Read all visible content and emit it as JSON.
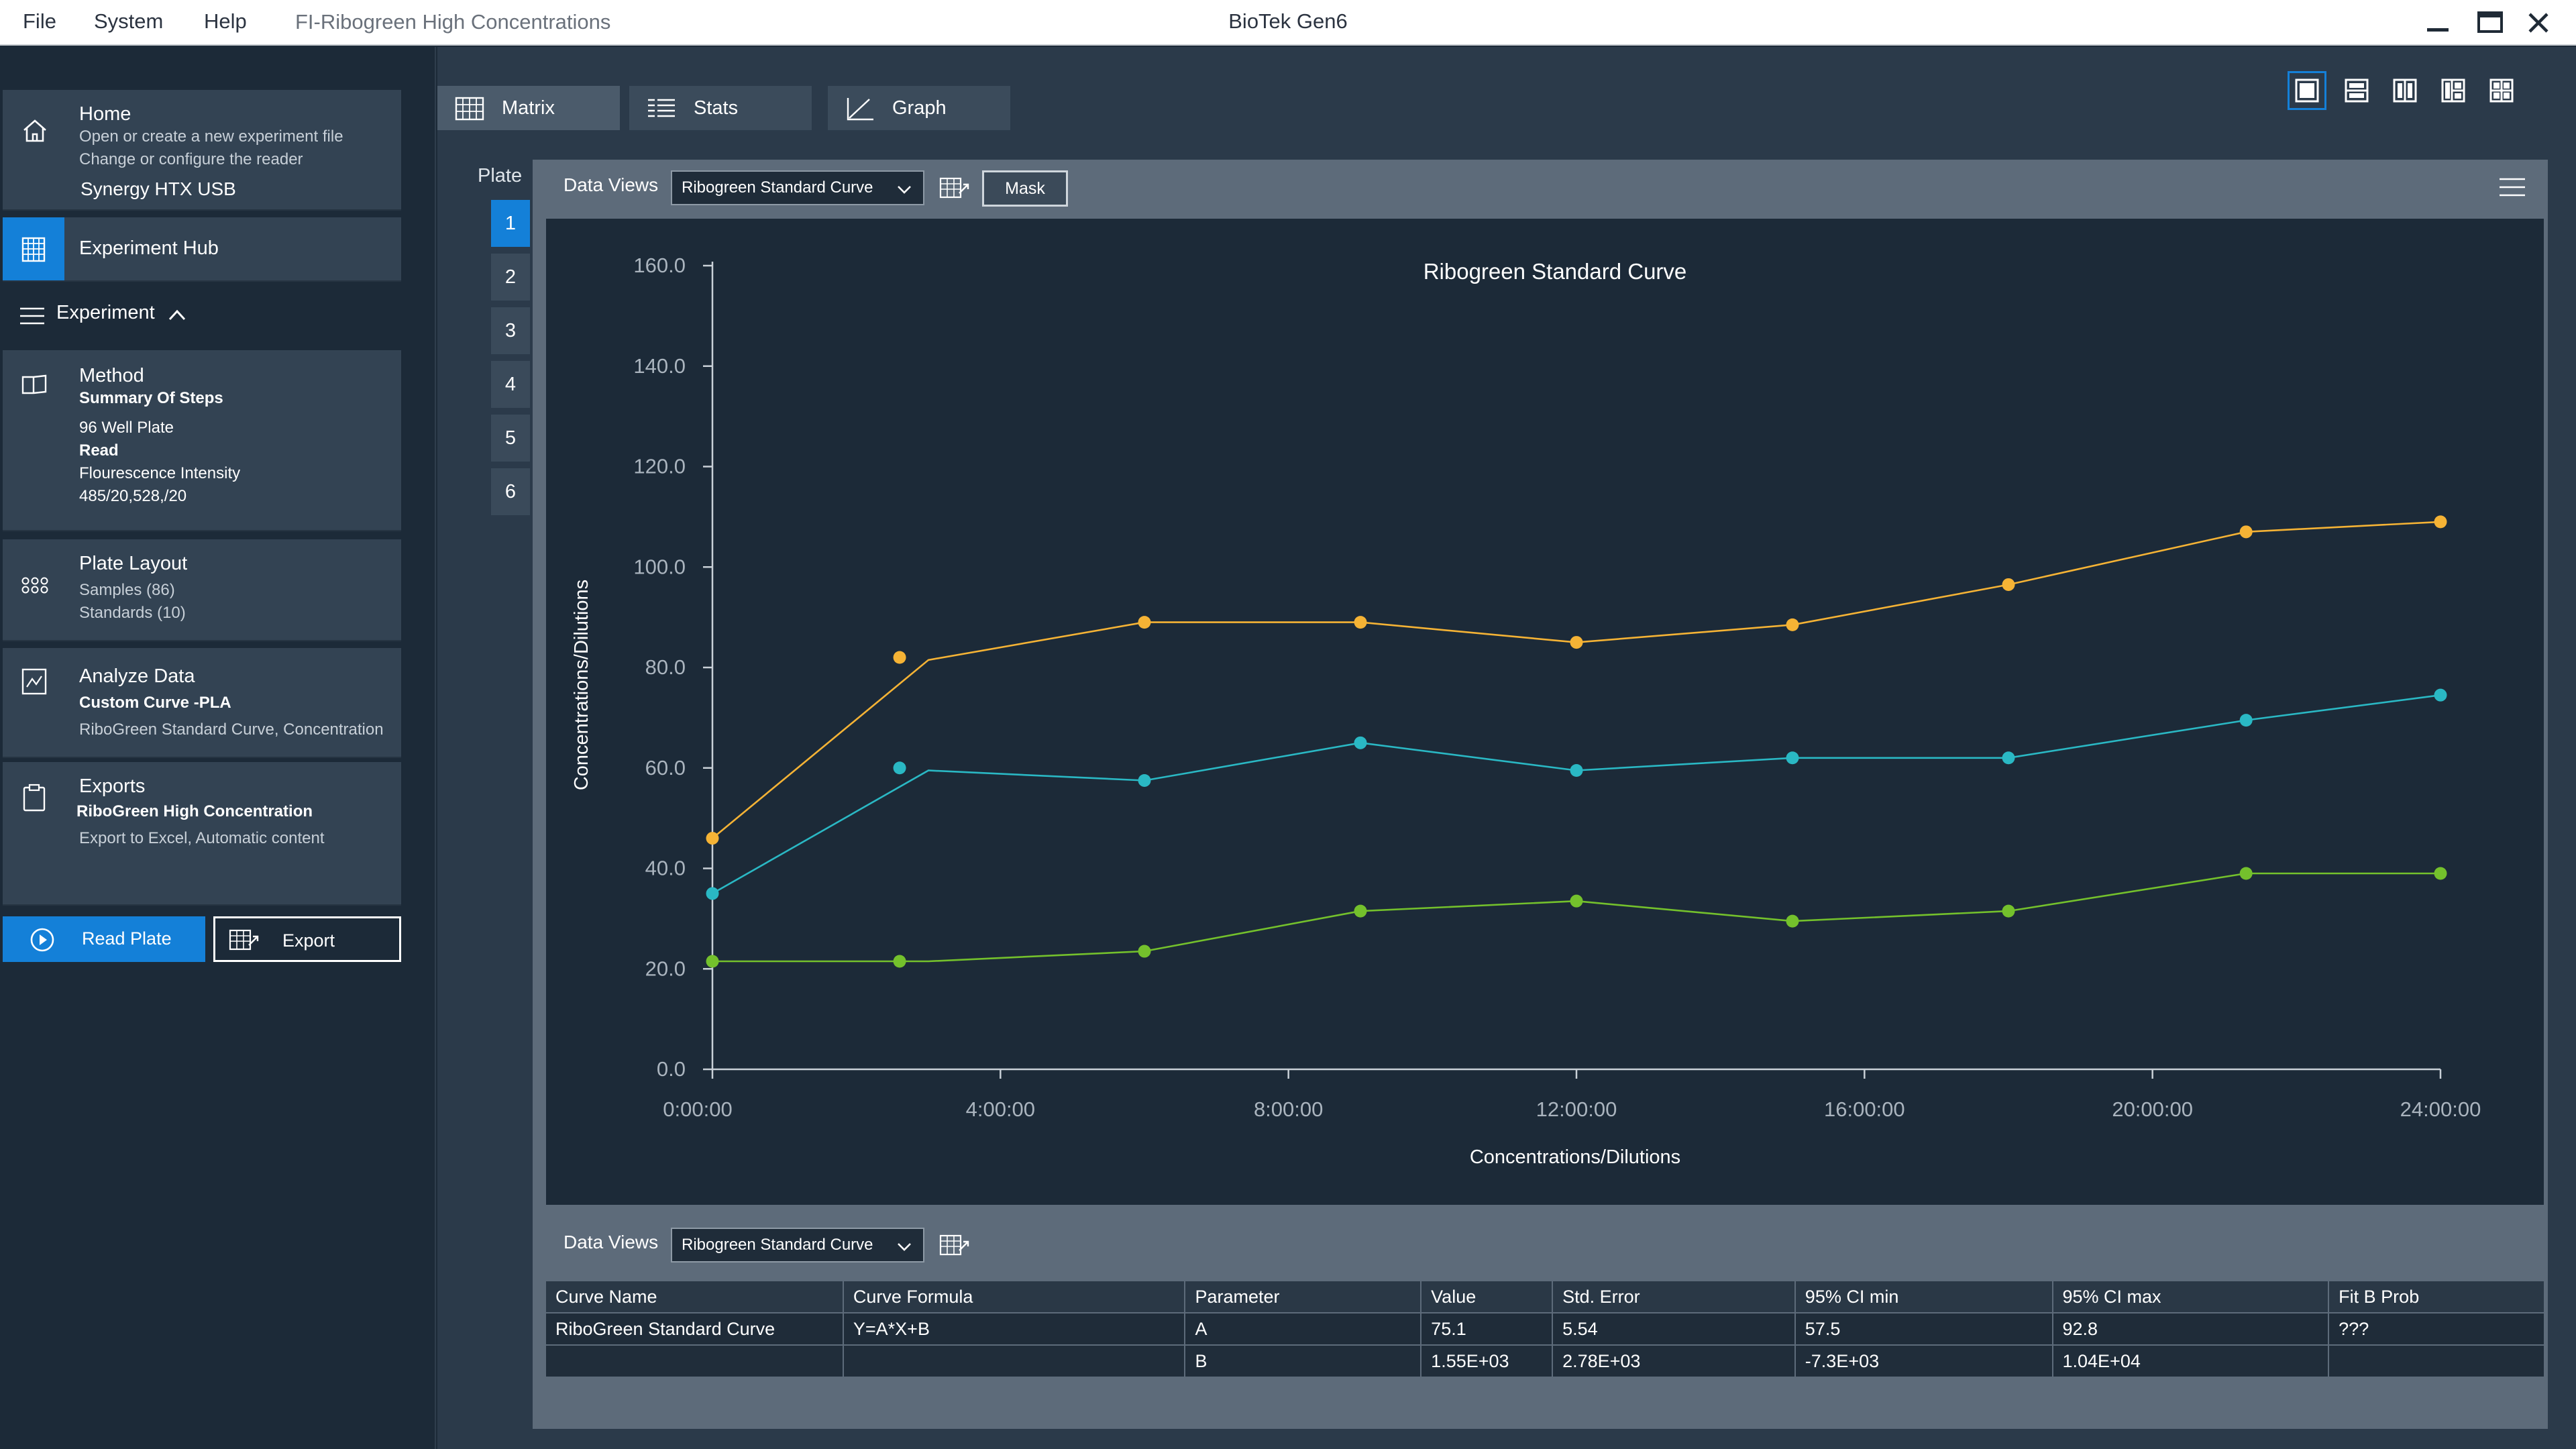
{
  "menu": {
    "file": "File",
    "system": "System",
    "help": "Help"
  },
  "document_name": "FI-Ribogreen High Concentrations",
  "app_title": "BioTek Gen6",
  "sidebar": {
    "home": {
      "title": "Home",
      "line1": "Open or create a new experiment file",
      "line2": "Change or configure the reader",
      "reader": "Synergy HTX USB"
    },
    "hub": {
      "title": "Experiment Hub"
    },
    "experiment": {
      "title": "Experiment"
    },
    "method": {
      "title": "Method",
      "sub": "Summary Of Steps",
      "l1": "96 Well Plate",
      "l2": "Read",
      "l3": "Flourescence Intensity",
      "l4": "485/20,528,/20"
    },
    "plate_layout": {
      "title": "Plate Layout",
      "l1": "Samples (86)",
      "l2": "Standards (10)"
    },
    "analyze": {
      "title": "Analyze Data",
      "sub": "Custom Curve -PLA",
      "l1": "RiboGreen Standard Curve, Concentration"
    },
    "exports": {
      "title": "Exports",
      "sub": "RiboGreen High Concentration",
      "l1": "Export to Excel, Automatic content"
    },
    "read_plate": "Read Plate",
    "export": "Export"
  },
  "tabs": [
    {
      "label": "Matrix"
    },
    {
      "label": "Stats"
    },
    {
      "label": "Graph"
    }
  ],
  "plate": {
    "label": "Plate",
    "numbers": [
      "1",
      "2",
      "3",
      "4",
      "5",
      "6"
    ]
  },
  "data_views": {
    "label": "Data Views",
    "selected": "Ribogreen Standard Curve",
    "mask": "Mask"
  },
  "chart_data": {
    "type": "line",
    "title": "Ribogreen Standard Curve",
    "xlabel": "Concentrations/Dilutions",
    "ylabel": "Concentrations/Dilutions",
    "ylim": [
      0,
      160
    ],
    "xlim_hours": [
      0,
      24
    ],
    "y_ticks": [
      "0.0",
      "20.0",
      "40.0",
      "60.0",
      "80.0",
      "100.0",
      "120.0",
      "140.0",
      "160.0"
    ],
    "x_ticks": [
      "0:00:00",
      "4:00:00",
      "8:00:00",
      "12:00:00",
      "16:00:00",
      "20:00:00",
      "24:00:00"
    ],
    "grid": false,
    "series": [
      {
        "color": "#f5b335",
        "points": [
          [
            0,
            46
          ],
          [
            2.6,
            82
          ],
          [
            6,
            89
          ],
          [
            9,
            89
          ],
          [
            12,
            85
          ],
          [
            15,
            88.5
          ],
          [
            18,
            96.5
          ],
          [
            21.3,
            107
          ],
          [
            24,
            109
          ]
        ],
        "line": [
          [
            0,
            46
          ],
          [
            3,
            81.5
          ],
          [
            6,
            89
          ],
          [
            9,
            89
          ],
          [
            12,
            85
          ],
          [
            15,
            88.5
          ],
          [
            18,
            96.5
          ],
          [
            21.3,
            107
          ],
          [
            24,
            109
          ]
        ]
      },
      {
        "color": "#2ab8c4",
        "points": [
          [
            0,
            35
          ],
          [
            2.6,
            60
          ],
          [
            6,
            57.5
          ],
          [
            9,
            65
          ],
          [
            12,
            59.5
          ],
          [
            15,
            62
          ],
          [
            18,
            62
          ],
          [
            21.3,
            69.5
          ],
          [
            24,
            74.5
          ]
        ],
        "line": [
          [
            0,
            35
          ],
          [
            3,
            59.5
          ],
          [
            6,
            57.5
          ],
          [
            9,
            65
          ],
          [
            12,
            59.5
          ],
          [
            15,
            62
          ],
          [
            18,
            62
          ],
          [
            21.3,
            69.5
          ],
          [
            24,
            74.5
          ]
        ]
      },
      {
        "color": "#74c12c",
        "points": [
          [
            0,
            21.5
          ],
          [
            2.6,
            21.5
          ],
          [
            6,
            23.5
          ],
          [
            9,
            31.5
          ],
          [
            12,
            33.5
          ],
          [
            15,
            29.5
          ],
          [
            18,
            31.5
          ],
          [
            21.3,
            39
          ],
          [
            24,
            39
          ]
        ],
        "line": [
          [
            0,
            21.5
          ],
          [
            3,
            21.5
          ],
          [
            6,
            23.5
          ],
          [
            9,
            31.5
          ],
          [
            12,
            33.5
          ],
          [
            15,
            29.5
          ],
          [
            18,
            31.5
          ],
          [
            21.3,
            39
          ],
          [
            24,
            39
          ]
        ]
      }
    ]
  },
  "table": {
    "data_views_label": "Data Views",
    "selected": "Ribogreen Standard Curve",
    "headers": [
      "Curve Name",
      "Curve Formula",
      "Parameter",
      "Value",
      "Std. Error",
      "95% CI min",
      "95% CI max",
      "Fit B Prob"
    ],
    "rows": [
      [
        "RiboGreen Standard Curve",
        "Y=A*X+B",
        "A",
        "75.1",
        "5.54",
        "57.5",
        "92.8",
        "???"
      ],
      [
        "",
        "",
        "B",
        "1.55E+03",
        "2.78E+03",
        "-7.3E+03",
        "1.04E+04",
        ""
      ]
    ]
  }
}
